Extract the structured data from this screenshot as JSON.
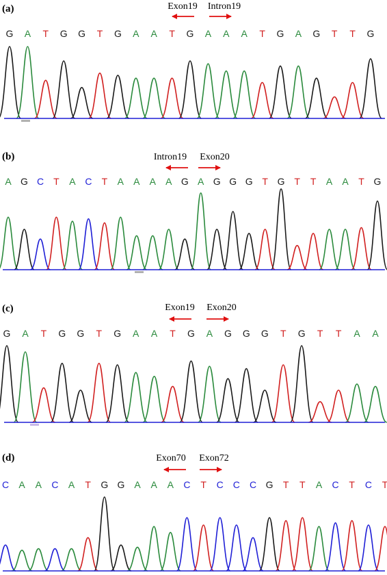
{
  "colors": {
    "A": "#2a8a3c",
    "C": "#1f1fd6",
    "G": "#1a1a1a",
    "T": "#d11f1f",
    "arrow": "#e01010",
    "baseline": "#1f1fd6"
  },
  "panels": [
    {
      "label": "(a)",
      "left_junction": "Exon19",
      "right_junction": "Intron19",
      "sequence": [
        "G",
        "A",
        "T",
        "G",
        "G",
        "T",
        "G",
        "A",
        "A",
        "T",
        "G",
        "A",
        "A",
        "A",
        "T",
        "G",
        "A",
        "G",
        "T",
        "T",
        "G"
      ],
      "peak_heights": [
        1.0,
        1.0,
        0.53,
        0.8,
        0.43,
        0.63,
        0.6,
        0.56,
        0.56,
        0.56,
        0.8,
        0.76,
        0.66,
        0.66,
        0.5,
        0.73,
        0.73,
        0.56,
        0.3,
        0.5,
        0.83
      ]
    },
    {
      "label": "(b)",
      "left_junction": "Intron19",
      "right_junction": "Exon20",
      "sequence": [
        "A",
        "G",
        "C",
        "T",
        "A",
        "C",
        "T",
        "A",
        "A",
        "A",
        "A",
        "G",
        "A",
        "G",
        "G",
        "G",
        "T",
        "G",
        "T",
        "T",
        "A",
        "A",
        "T",
        "G"
      ],
      "peak_heights": [
        0.65,
        0.5,
        0.38,
        0.65,
        0.6,
        0.63,
        0.58,
        0.65,
        0.42,
        0.42,
        0.5,
        0.38,
        0.95,
        0.5,
        0.72,
        0.45,
        0.5,
        1.0,
        0.3,
        0.45,
        0.5,
        0.5,
        0.52,
        0.85
      ]
    },
    {
      "label": "(c)",
      "left_junction": "Exon19",
      "right_junction": "Exon20",
      "sequence": [
        "G",
        "A",
        "T",
        "G",
        "G",
        "T",
        "G",
        "A",
        "A",
        "T",
        "G",
        "A",
        "G",
        "G",
        "G",
        "T",
        "G",
        "T",
        "T",
        "A",
        "A"
      ],
      "peak_heights": [
        1.0,
        0.92,
        0.45,
        0.77,
        0.42,
        0.77,
        0.75,
        0.65,
        0.6,
        0.47,
        0.8,
        0.73,
        0.57,
        0.7,
        0.42,
        0.75,
        1.0,
        0.27,
        0.42,
        0.5,
        0.47
      ]
    },
    {
      "label": "(d)",
      "left_junction": "Exon70",
      "right_junction": "Exon72",
      "sequence": [
        "C",
        "A",
        "A",
        "C",
        "A",
        "T",
        "G",
        "G",
        "A",
        "A",
        "A",
        "C",
        "T",
        "C",
        "C",
        "C",
        "G",
        "T",
        "T",
        "A",
        "C",
        "T",
        "C",
        "T"
      ],
      "peak_heights": [
        0.35,
        0.28,
        0.3,
        0.3,
        0.3,
        0.45,
        1.0,
        0.35,
        0.32,
        0.6,
        0.52,
        0.72,
        0.62,
        0.72,
        0.62,
        0.45,
        0.72,
        0.68,
        0.72,
        0.6,
        0.65,
        0.68,
        0.62,
        0.6
      ]
    }
  ]
}
